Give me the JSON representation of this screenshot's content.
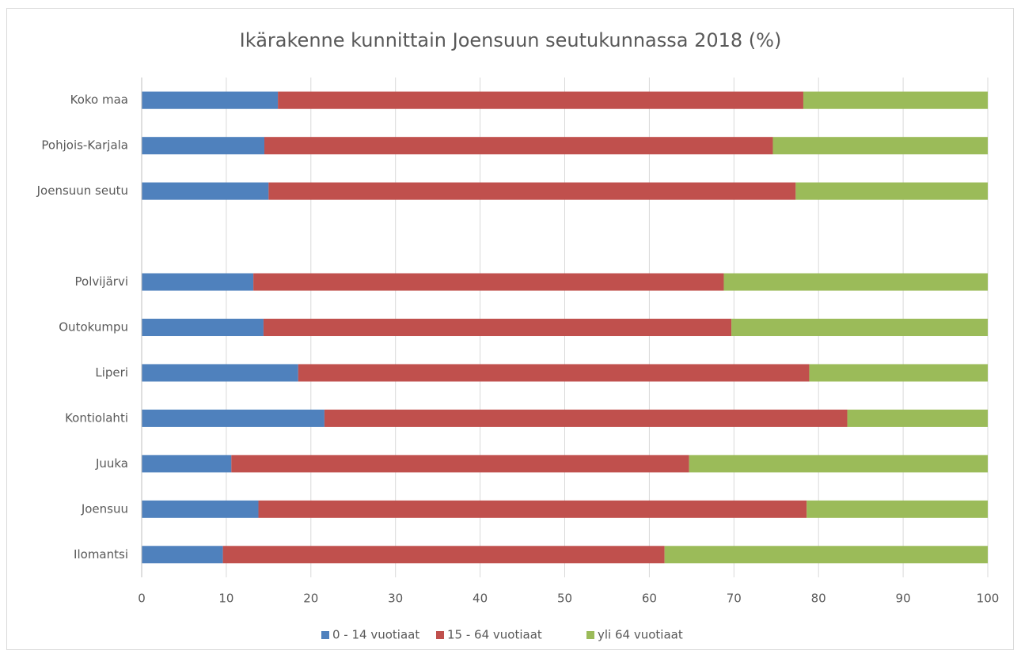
{
  "chart_data": {
    "type": "stacked_barh",
    "title": "Ikärakenne kunnittain Joensuun seutukunnassa 2018 (%)",
    "categories": [
      "Koko maa",
      "Pohjois-Karjala",
      "Joensuun seutu",
      null,
      "Polvijärvi",
      "Outokumpu",
      "Liperi",
      "Kontiolahti",
      "Juuka",
      "Joensuu",
      "Ilomantsi"
    ],
    "series": [
      {
        "name": "0 - 14 vuotiaat",
        "color": "#4f81bd",
        "values": [
          16.1,
          14.5,
          15.0,
          null,
          13.2,
          14.4,
          18.5,
          21.6,
          10.6,
          13.8,
          9.6
        ]
      },
      {
        "name": "15 - 64 vuotiaat",
        "color": "#c0504d",
        "values": [
          62.1,
          60.1,
          62.3,
          null,
          55.6,
          55.3,
          60.4,
          61.8,
          54.1,
          64.8,
          52.2
        ]
      },
      {
        "name": "yli 64 vuotiaat",
        "color": "#9bbb59",
        "values": [
          21.8,
          25.4,
          22.7,
          null,
          31.2,
          30.3,
          21.1,
          16.6,
          35.3,
          21.4,
          38.2
        ]
      }
    ],
    "xlim": [
      0,
      100
    ],
    "xticks": [
      0,
      10,
      20,
      30,
      40,
      50,
      60,
      70,
      80,
      90,
      100
    ],
    "grid": true,
    "legend": "bottom"
  }
}
